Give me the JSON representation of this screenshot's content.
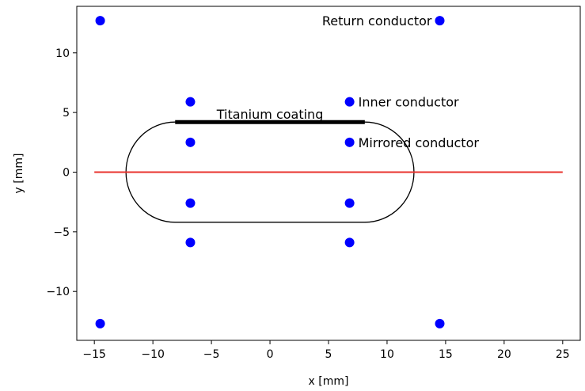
{
  "chart_data": {
    "type": "scatter",
    "xlabel": "x [mm]",
    "ylabel": "y [mm]",
    "xlim": [
      -16.5,
      26.5
    ],
    "ylim": [
      -14.1,
      13.9
    ],
    "xticks": [
      -15,
      -10,
      -5,
      0,
      5,
      10,
      15,
      20,
      25
    ],
    "yticks": [
      -10,
      -5,
      0,
      5,
      10
    ],
    "xtick_labels": [
      "−15",
      "−10",
      "−5",
      "0",
      "5",
      "10",
      "15",
      "20",
      "25"
    ],
    "ytick_labels": [
      "−10",
      "−5",
      "0",
      "5",
      "10"
    ],
    "grid": false,
    "colors": {
      "points": "#0000ff",
      "axis_line": "#e8332e",
      "outline": "#000000"
    },
    "points": [
      {
        "x": -14.5,
        "y": 12.7
      },
      {
        "x": 14.5,
        "y": 12.7
      },
      {
        "x": -14.5,
        "y": -12.7
      },
      {
        "x": 14.5,
        "y": -12.7
      },
      {
        "x": -6.8,
        "y": 5.9
      },
      {
        "x": 6.8,
        "y": 5.9
      },
      {
        "x": -6.8,
        "y": -5.9
      },
      {
        "x": 6.8,
        "y": -5.9
      },
      {
        "x": -6.8,
        "y": 2.5
      },
      {
        "x": 6.8,
        "y": 2.5
      },
      {
        "x": -6.8,
        "y": -2.6
      },
      {
        "x": 6.8,
        "y": -2.6
      }
    ],
    "horizontal_line": {
      "y": 0,
      "x_from": -15,
      "x_to": 25
    },
    "racetrack": {
      "half_length": 8.1,
      "radius": 4.2
    },
    "coating": {
      "y": 4.2,
      "x_from": -8.1,
      "x_to": 8.1
    },
    "annotations": [
      {
        "text": "Return conductor",
        "x": 14.5,
        "y": 12.7,
        "anchor": "end"
      },
      {
        "text": "Inner conductor",
        "x": 6.8,
        "y": 5.9,
        "anchor": "start"
      },
      {
        "text": "Mirrored conductor",
        "x": 6.8,
        "y": 2.5,
        "anchor": "start"
      },
      {
        "text": "Titanium coating",
        "x": 0,
        "y": 4.2,
        "anchor": "middle"
      }
    ]
  }
}
